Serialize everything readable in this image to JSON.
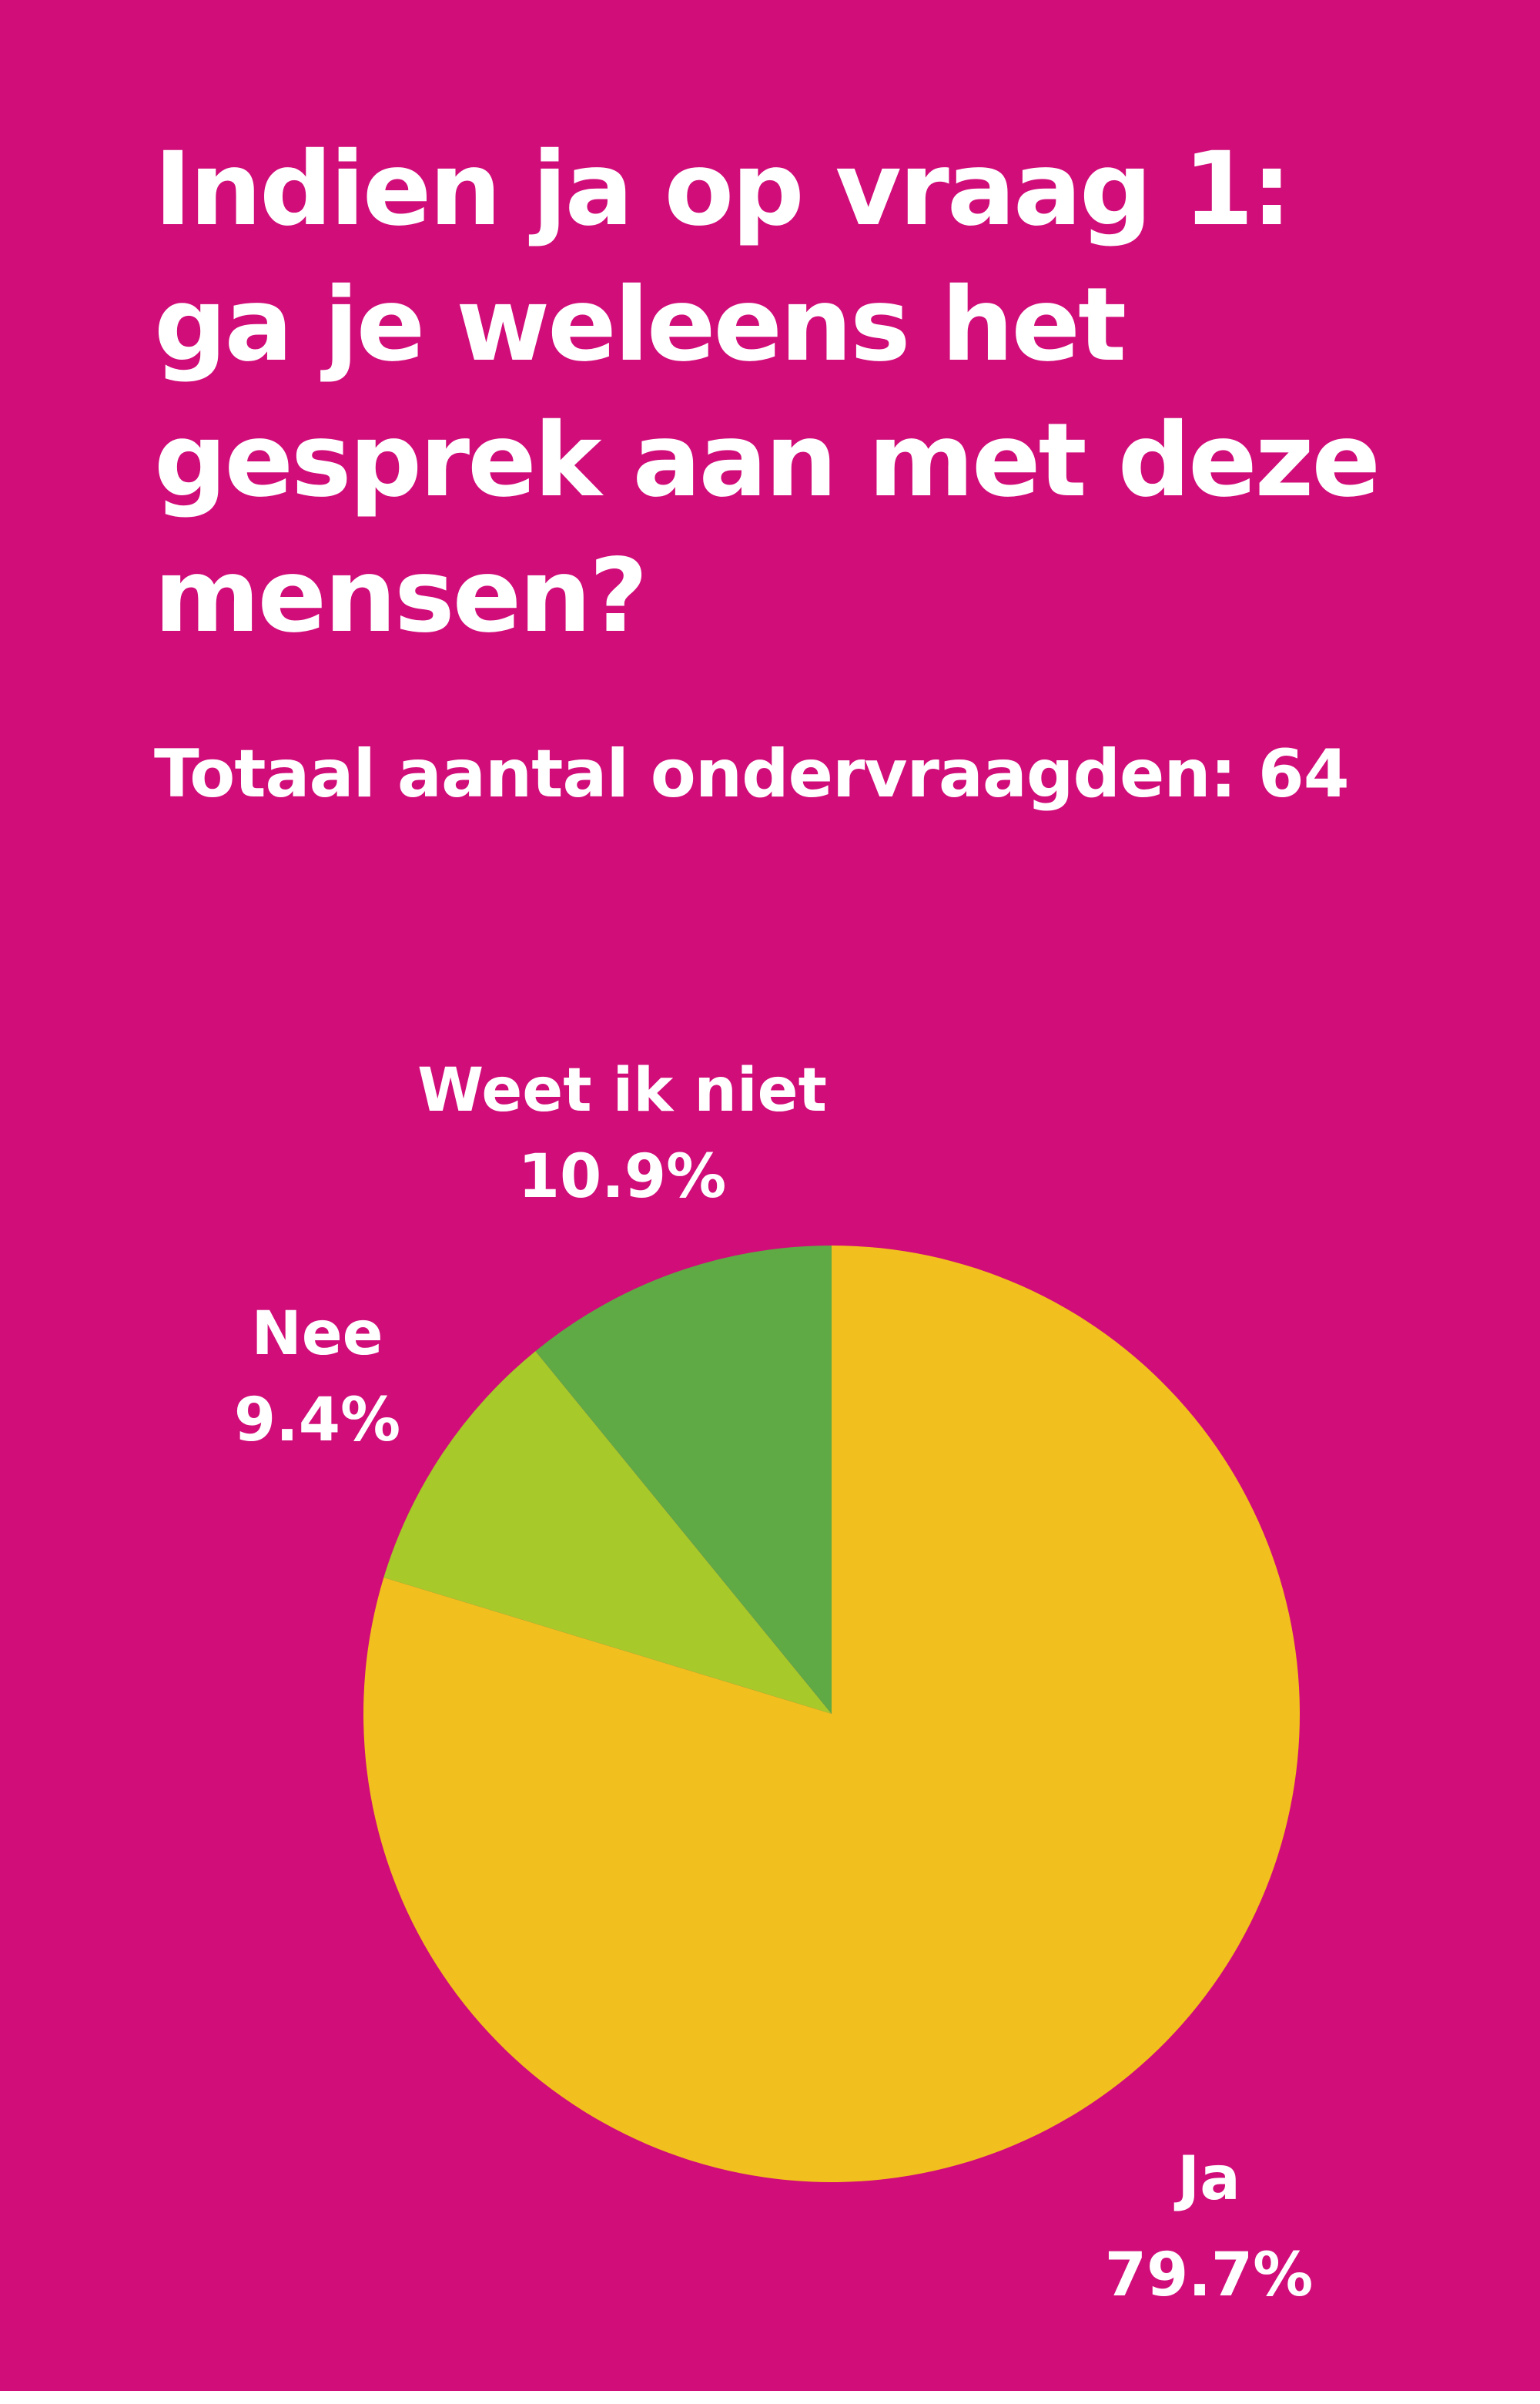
{
  "poster": {
    "background_color": "#d10d79",
    "title": "Indien ja op vraag 1:\nga je weleens het\ngesprek aan met deze\nmensen?",
    "subtitle": "Totaal aantal ondervraagden: 64"
  },
  "chart_data": {
    "type": "pie",
    "start_angle_deg": 0,
    "direction": "clockwise",
    "slices": [
      {
        "label": "Ja",
        "value_label": "79.7%",
        "value": 79.7,
        "color": "#f2c01e"
      },
      {
        "label": "Nee",
        "value_label": "9.4%",
        "value": 9.4,
        "color": "#a7c92a"
      },
      {
        "label": "Weet ik niet",
        "value_label": "10.9%",
        "value": 10.9,
        "color": "#5faa44"
      }
    ]
  }
}
